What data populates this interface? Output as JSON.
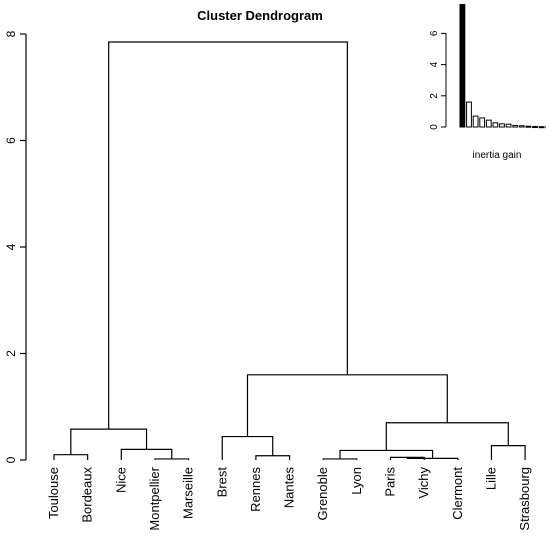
{
  "chart_data": [
    {
      "type": "dendrogram",
      "title": "Cluster Dendrogram",
      "xlabel": "",
      "ylabel": "",
      "ylim": [
        0,
        8
      ],
      "yticks": [
        0,
        2,
        4,
        6,
        8
      ],
      "grid": false,
      "leaves": [
        "Toulouse",
        "Bordeaux",
        "Nice",
        "Montpellier",
        "Marseille",
        "Brest",
        "Rennes",
        "Nantes",
        "Grenoble",
        "Lyon",
        "Paris",
        "Vichy",
        "Clermont",
        "Lille",
        "Strasbourg"
      ],
      "merges": [
        {
          "left": "Paris",
          "right": "Vichy",
          "height": 0.05
        },
        {
          "left": "Montpellier",
          "right": "Marseille",
          "height": 0.02
        },
        {
          "left": "Grenoble",
          "right": "Lyon",
          "height": 0.02
        },
        {
          "left": "Paris+Vichy",
          "right": "Clermont",
          "height": 0.03
        },
        {
          "left": "Rennes",
          "right": "Nantes",
          "height": 0.08
        },
        {
          "left": "Toulouse",
          "right": "Bordeaux",
          "height": 0.1
        },
        {
          "left": "Nice",
          "right": "Montpellier+Marseille",
          "height": 0.2
        },
        {
          "left": "Grenoble+Lyon",
          "right": "Paris+Vichy+Clermont",
          "height": 0.18
        },
        {
          "left": "Lille",
          "right": "Strasbourg",
          "height": 0.27
        },
        {
          "left": "Brest",
          "right": "Rennes+Nantes",
          "height": 0.44
        },
        {
          "left": "Toulouse+Bordeaux",
          "right": "Nice+Montpellier+Marseille",
          "height": 0.58
        },
        {
          "left": "Grenoble+Lyon+Paris+Vichy+Clermont",
          "right": "Lille+Strasbourg",
          "height": 0.7
        },
        {
          "left": "Brest+Rennes+Nantes",
          "right": "Grenoble+Lyon+Paris+Vichy+Clermont+Lille+Strasbourg",
          "height": 1.6
        },
        {
          "left": "Toulouse+Bordeaux+Nice+Montpellier+Marseille",
          "right": "Brest+Rennes+Nantes+Grenoble+Lyon+Paris+Vichy+Clermont+Lille+Strasbourg",
          "height": 7.85
        }
      ]
    },
    {
      "type": "bar",
      "title": "",
      "xlabel": "inertia gain",
      "ylabel": "",
      "ylim": [
        0,
        8
      ],
      "yticks": [
        0,
        2,
        4,
        6
      ],
      "values": [
        7.85,
        1.6,
        0.7,
        0.58,
        0.44,
        0.27,
        0.2,
        0.18,
        0.1,
        0.08,
        0.05,
        0.03,
        0.02,
        0.02
      ],
      "highlight_color": "#000000",
      "bar_color": "#ffffff"
    }
  ]
}
